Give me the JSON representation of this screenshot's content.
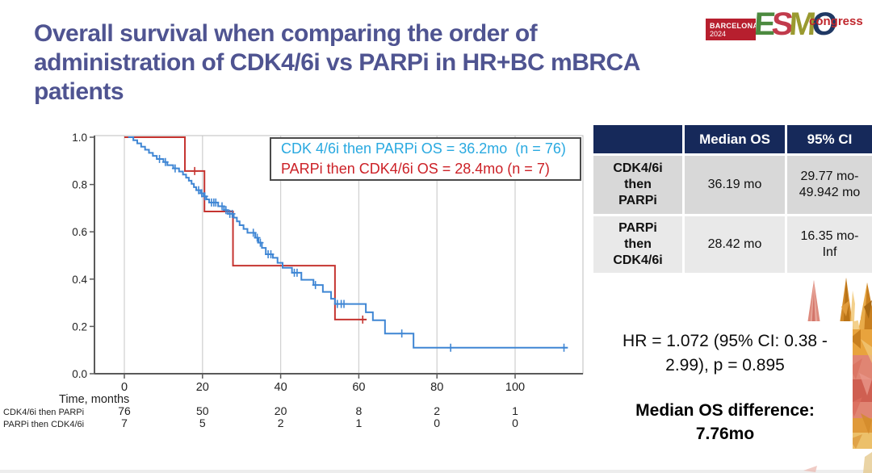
{
  "title": {
    "lines": [
      "Overall survival when comparing the order of",
      "administration of CDK4/6i vs PARPi in HR+BC mBRCA",
      "patients"
    ]
  },
  "logo": {
    "venue": "BARCELONA",
    "year": "2024",
    "esmo": [
      {
        "char": "E",
        "color": "#4c8a3f"
      },
      {
        "char": "S",
        "color": "#c13b4c"
      },
      {
        "char": "M",
        "color": "#9a9a30"
      },
      {
        "char": "O",
        "color": "#1f3864"
      }
    ],
    "suffix": "congress"
  },
  "legend": {
    "line1": "CDK 4/6i then PARPi OS = 36.2mo  (n = 76)",
    "line2": "PARPi then CDK4/6i OS = 28.4mo (n = 7)"
  },
  "table": {
    "headers": [
      "",
      "Median OS",
      "95% CI"
    ],
    "rows": [
      {
        "label": "CDK4/6i\nthen\nPARPi",
        "median": "36.19 mo",
        "ci": "29.77 mo-\n49.942 mo"
      },
      {
        "label": "PARPi\nthen\nCDK4/6i",
        "median": "28.42 mo",
        "ci": "16.35 mo-\nInf"
      }
    ]
  },
  "stats": {
    "hr": "HR = 1.072 (95% CI: 0.38 -\n2.99), p = 0.895",
    "diff": "Median OS difference:\n7.76mo"
  },
  "chart_data": {
    "type": "line",
    "subtype": "kaplan-meier-step",
    "xlabel": "Time, months",
    "ylabel": "",
    "xlim": [
      -7.6,
      117.4
    ],
    "ylim": [
      0.0,
      1.0
    ],
    "x_ticks": [
      0,
      20,
      40,
      60,
      80,
      100
    ],
    "y_ticks": [
      0.0,
      0.2,
      0.4,
      0.6,
      0.8,
      1.0
    ],
    "grid": "vertical",
    "legend_position": "top-right-inside",
    "series": [
      {
        "name": "PARPi then CDK4/6i",
        "n": 7,
        "median_os_mo": 28.4,
        "color": "#c53430",
        "steps": [
          [
            0,
            1.0
          ],
          [
            15.5,
            0.857
          ],
          [
            20.5,
            0.686
          ],
          [
            27.8,
            0.457
          ],
          [
            53.9,
            0.229
          ],
          [
            62,
            0.229
          ]
        ],
        "censors": [
          [
            18,
            0.857
          ],
          [
            61,
            0.229
          ]
        ]
      },
      {
        "name": "CDK 4/6i then PARPi",
        "n": 76,
        "median_os_mo": 36.2,
        "color": "#3f86d4",
        "steps": [
          [
            1,
            1.0
          ],
          [
            2.3,
            0.987
          ],
          [
            3.3,
            0.974
          ],
          [
            4.3,
            0.96
          ],
          [
            5.3,
            0.947
          ],
          [
            6.3,
            0.934
          ],
          [
            7.3,
            0.921
          ],
          [
            8.3,
            0.908
          ],
          [
            10,
            0.895
          ],
          [
            11,
            0.882
          ],
          [
            12.5,
            0.868
          ],
          [
            14,
            0.855
          ],
          [
            15,
            0.842
          ],
          [
            15.8,
            0.829
          ],
          [
            16.5,
            0.816
          ],
          [
            17.2,
            0.803
          ],
          [
            17.8,
            0.789
          ],
          [
            18.4,
            0.776
          ],
          [
            19.5,
            0.763
          ],
          [
            20.3,
            0.75
          ],
          [
            21,
            0.737
          ],
          [
            21.7,
            0.724
          ],
          [
            24,
            0.708
          ],
          [
            25.5,
            0.692
          ],
          [
            26.5,
            0.676
          ],
          [
            28,
            0.66
          ],
          [
            28.8,
            0.644
          ],
          [
            29.5,
            0.628
          ],
          [
            30.5,
            0.612
          ],
          [
            31.5,
            0.596
          ],
          [
            33.5,
            0.575
          ],
          [
            34.3,
            0.554
          ],
          [
            35.2,
            0.532
          ],
          [
            36.2,
            0.505
          ],
          [
            38,
            0.49
          ],
          [
            39.2,
            0.469
          ],
          [
            40.5,
            0.448
          ],
          [
            42.9,
            0.427
          ],
          [
            45.3,
            0.397
          ],
          [
            48.4,
            0.375
          ],
          [
            50.8,
            0.346
          ],
          [
            52.9,
            0.317
          ],
          [
            53.9,
            0.295
          ],
          [
            61.8,
            0.26
          ],
          [
            63.6,
            0.226
          ],
          [
            66.7,
            0.17
          ],
          [
            74,
            0.11
          ],
          [
            113.5,
            0.11
          ]
        ],
        "censors": [
          [
            9,
            0.908
          ],
          [
            10.5,
            0.895
          ],
          [
            13,
            0.868
          ],
          [
            19,
            0.776
          ],
          [
            19.8,
            0.763
          ],
          [
            20.6,
            0.75
          ],
          [
            22.3,
            0.724
          ],
          [
            22.9,
            0.724
          ],
          [
            23.4,
            0.724
          ],
          [
            25,
            0.708
          ],
          [
            26,
            0.692
          ],
          [
            27,
            0.676
          ],
          [
            27.6,
            0.676
          ],
          [
            33,
            0.596
          ],
          [
            34,
            0.575
          ],
          [
            34.8,
            0.554
          ],
          [
            36.8,
            0.505
          ],
          [
            37.5,
            0.505
          ],
          [
            43.5,
            0.427
          ],
          [
            44.2,
            0.427
          ],
          [
            48.9,
            0.375
          ],
          [
            54.5,
            0.295
          ],
          [
            55.5,
            0.295
          ],
          [
            56.2,
            0.295
          ],
          [
            71,
            0.17
          ],
          [
            83.5,
            0.11
          ],
          [
            112.5,
            0.11
          ]
        ]
      }
    ],
    "risk_table": {
      "time_label": "Time, months",
      "times": [
        0,
        20,
        40,
        60,
        80,
        100
      ],
      "rows": [
        {
          "name": "CDK4/6i then PARPi",
          "counts": [
            76,
            50,
            20,
            8,
            2,
            1
          ]
        },
        {
          "name": "PARPi then CDK4/6i",
          "counts": [
            7,
            5,
            2,
            1,
            0,
            0
          ]
        }
      ]
    }
  }
}
